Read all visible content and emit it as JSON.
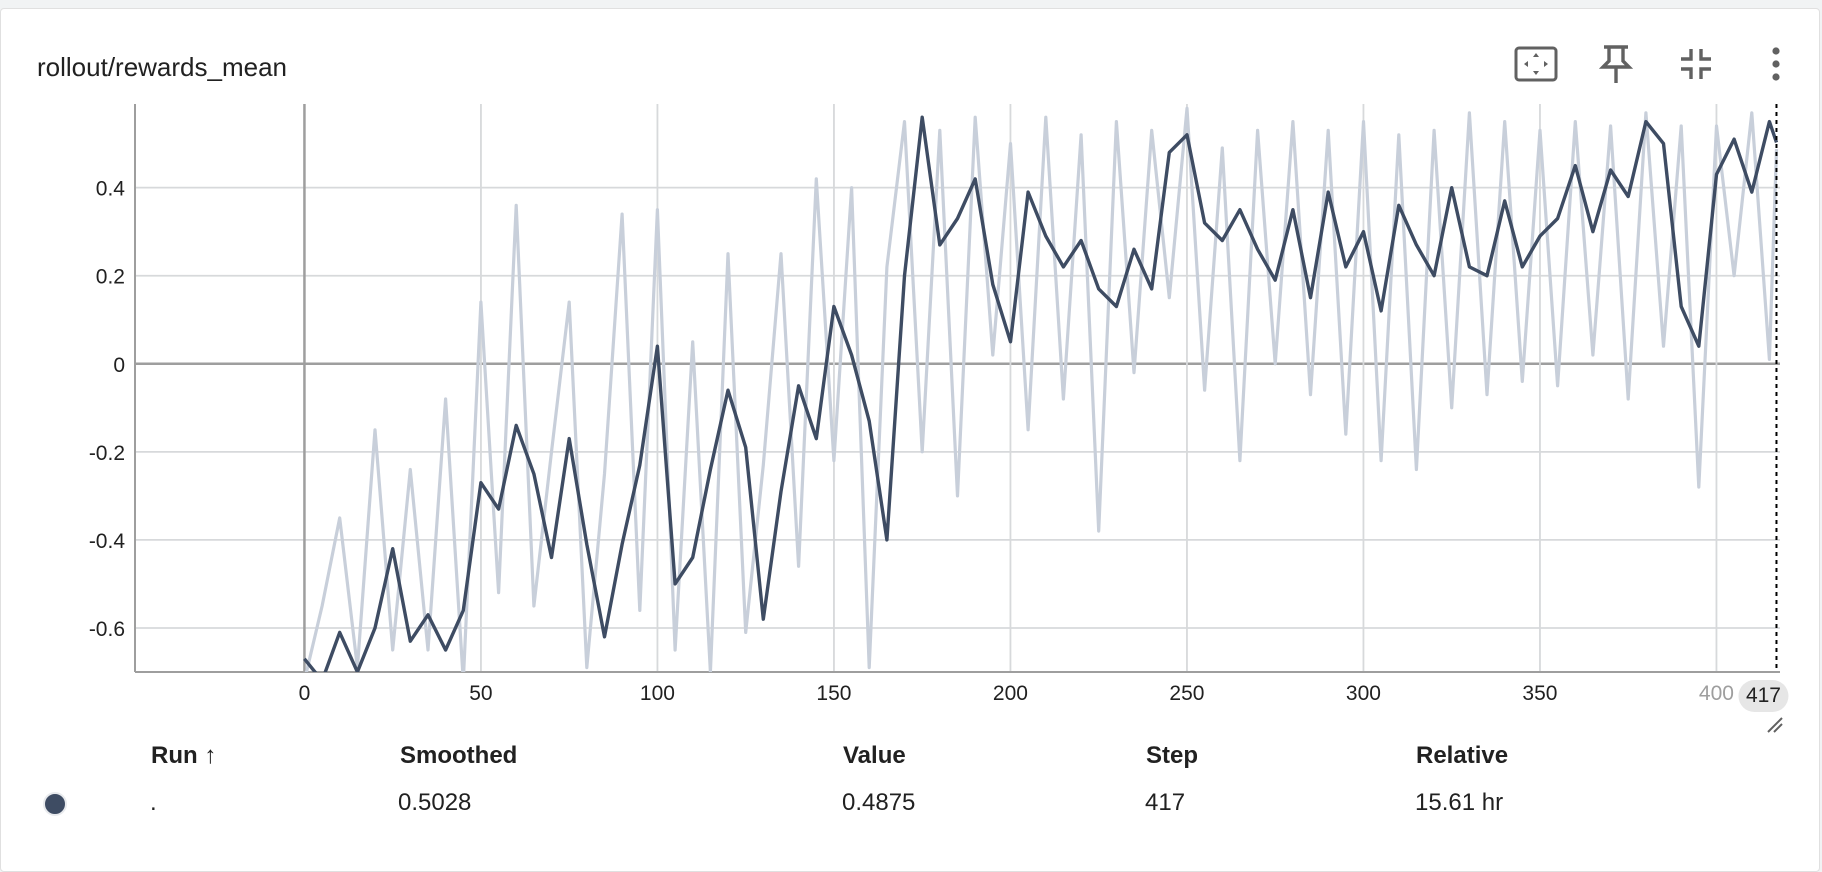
{
  "card": {
    "title": "rollout/rewards_mean",
    "toolbar": [
      {
        "icon": "fit-domain-icon",
        "label": "Fit domain to data"
      },
      {
        "icon": "pin-icon",
        "label": "Pin card"
      },
      {
        "icon": "collapse-icon",
        "label": "Collapse card"
      },
      {
        "icon": "more-vert-icon",
        "label": "More options"
      }
    ]
  },
  "colors": {
    "smoothed": "#3e4c63",
    "raw": "#c8cfda",
    "grid": "#d7d9db",
    "axis": "#9e9e9e",
    "hover_badge": "#e6e6e6"
  },
  "chart_data": {
    "type": "line",
    "title": "rollout/rewards_mean",
    "xlabel": "",
    "ylabel": "",
    "xlim": [
      -48,
      418
    ],
    "ylim": [
      -0.7,
      0.59
    ],
    "x_ticks": [
      0,
      50,
      100,
      150,
      200,
      250,
      300,
      350,
      400
    ],
    "y_ticks": [
      -0.6,
      -0.4,
      -0.2,
      0,
      0.2,
      0.4
    ],
    "y_tick_labels": [
      "-0.6",
      "-0.4",
      "-0.2",
      "0",
      "0.2",
      "0.4"
    ],
    "hover_step": 417,
    "hover_step_label": "417",
    "grid": true,
    "series": [
      {
        "role": "smoothed",
        "x": [
          0,
          5,
          10,
          15,
          20,
          25,
          30,
          35,
          40,
          45,
          50,
          55,
          60,
          65,
          70,
          75,
          80,
          85,
          90,
          95,
          100,
          105,
          110,
          115,
          120,
          125,
          130,
          135,
          140,
          145,
          150,
          155,
          160,
          165,
          170,
          175,
          180,
          185,
          190,
          195,
          200,
          205,
          210,
          215,
          220,
          225,
          230,
          235,
          240,
          245,
          250,
          255,
          260,
          265,
          270,
          275,
          280,
          285,
          290,
          295,
          300,
          305,
          310,
          315,
          320,
          325,
          330,
          335,
          340,
          345,
          350,
          355,
          360,
          365,
          370,
          375,
          380,
          385,
          390,
          395,
          400,
          405,
          410,
          415,
          417
        ],
        "y": [
          -0.67,
          -0.72,
          -0.61,
          -0.7,
          -0.6,
          -0.42,
          -0.63,
          -0.57,
          -0.65,
          -0.56,
          -0.27,
          -0.33,
          -0.14,
          -0.25,
          -0.44,
          -0.17,
          -0.41,
          -0.62,
          -0.41,
          -0.23,
          0.04,
          -0.5,
          -0.44,
          -0.24,
          -0.06,
          -0.19,
          -0.58,
          -0.29,
          -0.05,
          -0.17,
          0.13,
          0.02,
          -0.13,
          -0.4,
          0.2,
          0.56,
          0.27,
          0.33,
          0.42,
          0.18,
          0.05,
          0.39,
          0.29,
          0.22,
          0.28,
          0.17,
          0.13,
          0.26,
          0.17,
          0.48,
          0.52,
          0.32,
          0.28,
          0.35,
          0.26,
          0.19,
          0.35,
          0.15,
          0.39,
          0.22,
          0.3,
          0.12,
          0.36,
          0.27,
          0.2,
          0.4,
          0.22,
          0.2,
          0.37,
          0.22,
          0.29,
          0.33,
          0.45,
          0.3,
          0.44,
          0.38,
          0.55,
          0.5,
          0.13,
          0.04,
          0.43,
          0.51,
          0.39,
          0.55,
          0.5028
        ]
      },
      {
        "role": "raw",
        "x": [
          0,
          5,
          10,
          15,
          20,
          25,
          30,
          35,
          40,
          45,
          50,
          55,
          60,
          65,
          70,
          75,
          80,
          85,
          90,
          95,
          100,
          105,
          110,
          115,
          120,
          125,
          130,
          135,
          140,
          145,
          150,
          155,
          160,
          165,
          170,
          175,
          180,
          185,
          190,
          195,
          200,
          205,
          210,
          215,
          220,
          225,
          230,
          235,
          240,
          245,
          250,
          255,
          260,
          265,
          270,
          275,
          280,
          285,
          290,
          295,
          300,
          305,
          310,
          315,
          320,
          325,
          330,
          335,
          340,
          345,
          350,
          355,
          360,
          365,
          370,
          375,
          380,
          385,
          390,
          395,
          400,
          405,
          410,
          415,
          417
        ],
        "y": [
          -0.72,
          -0.55,
          -0.35,
          -0.69,
          -0.15,
          -0.65,
          -0.24,
          -0.65,
          -0.08,
          -0.72,
          0.14,
          -0.52,
          0.36,
          -0.55,
          -0.2,
          0.14,
          -0.69,
          -0.25,
          0.34,
          -0.56,
          0.35,
          -0.65,
          0.05,
          -0.7,
          0.25,
          -0.61,
          -0.23,
          0.25,
          -0.46,
          0.42,
          -0.22,
          0.4,
          -0.69,
          0.22,
          0.55,
          -0.2,
          0.53,
          -0.3,
          0.56,
          0.02,
          0.5,
          -0.15,
          0.56,
          -0.08,
          0.52,
          -0.38,
          0.55,
          -0.02,
          0.53,
          0.15,
          0.58,
          -0.06,
          0.49,
          -0.22,
          0.53,
          0.0,
          0.55,
          -0.07,
          0.53,
          -0.16,
          0.55,
          -0.22,
          0.52,
          -0.24,
          0.53,
          -0.1,
          0.57,
          -0.07,
          0.55,
          -0.04,
          0.53,
          -0.05,
          0.55,
          0.02,
          0.54,
          -0.08,
          0.57,
          0.04,
          0.54,
          -0.28,
          0.54,
          0.2,
          0.57,
          0.01,
          0.4875
        ]
      }
    ]
  },
  "table": {
    "headers": {
      "run": "Run ↑",
      "smoothed": "Smoothed",
      "value": "Value",
      "step": "Step",
      "relative": "Relative"
    },
    "rows": [
      {
        "run": ".",
        "smoothed": "0.5028",
        "value": "0.4875",
        "step": "417",
        "relative": "15.61 hr",
        "color": "#3e4c63"
      }
    ]
  }
}
